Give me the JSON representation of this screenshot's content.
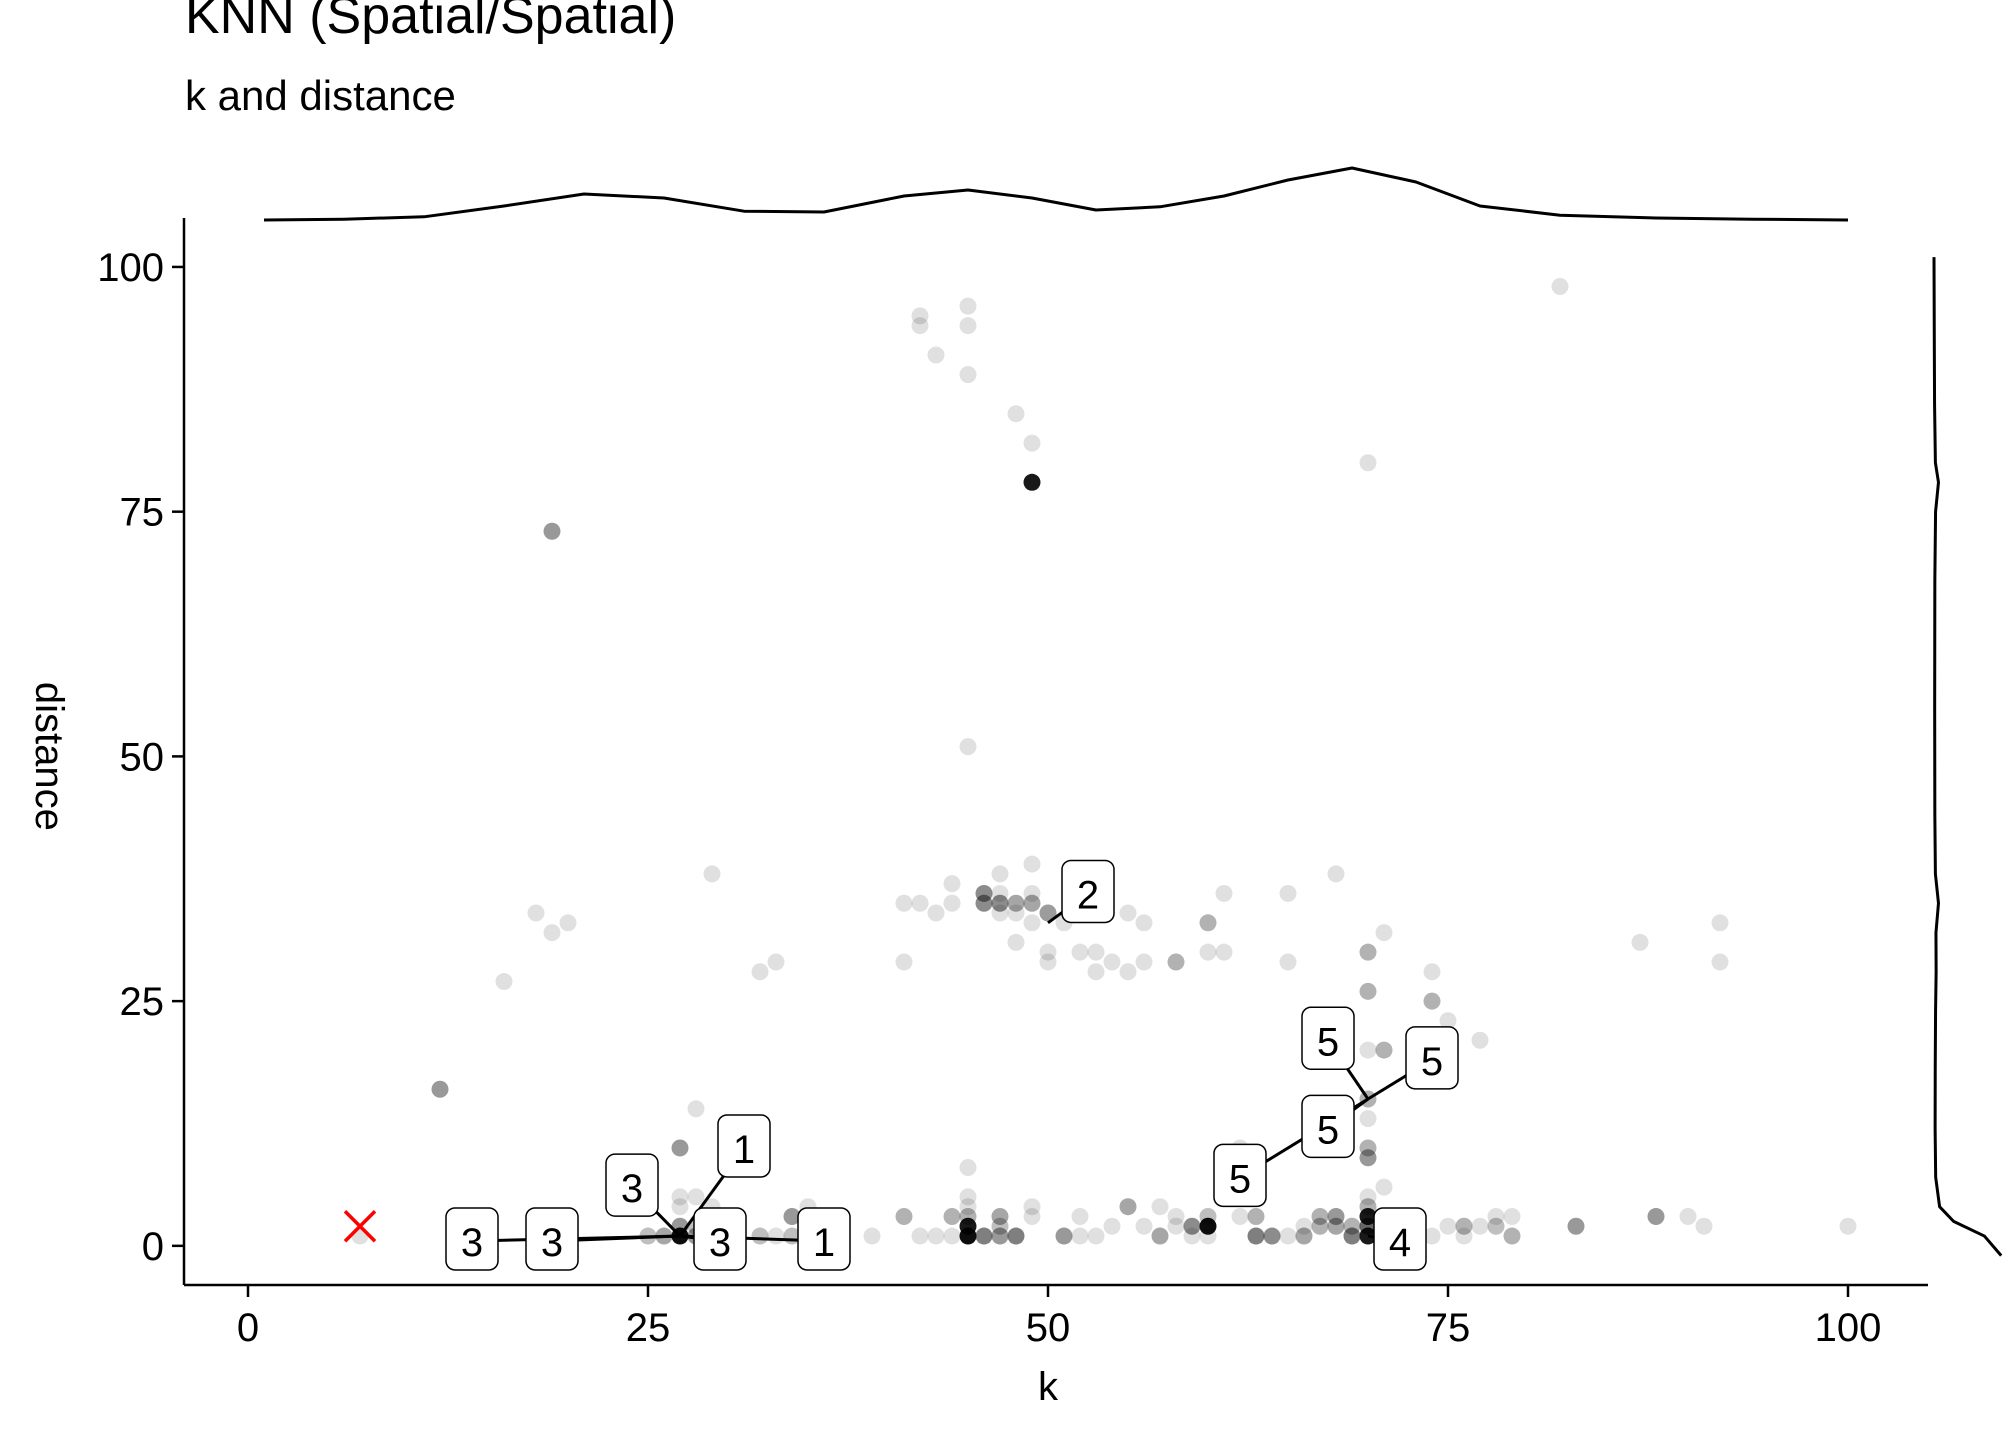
{
  "chart_data": {
    "type": "scatter",
    "title": "KNN (Spatial/Spatial)",
    "subtitle": "k and distance",
    "xlabel": "k",
    "ylabel": "distance",
    "xlim": [
      -4,
      105
    ],
    "ylim": [
      -4,
      105
    ],
    "x_ticks": [
      0,
      25,
      50,
      75,
      100
    ],
    "y_ticks": [
      0,
      25,
      50,
      75,
      100
    ],
    "grid": false,
    "marginal_density": {
      "top": "k",
      "right": "distance"
    },
    "point_color": "#000000",
    "marker_color": "#ff0000",
    "points": [
      [
        42,
        95,
        0.12
      ],
      [
        42,
        94,
        0.12
      ],
      [
        45,
        96,
        0.12
      ],
      [
        45,
        94,
        0.12
      ],
      [
        43,
        91,
        0.12
      ],
      [
        45,
        89,
        0.12
      ],
      [
        48,
        85,
        0.12
      ],
      [
        49,
        82,
        0.12
      ],
      [
        82,
        98,
        0.12
      ],
      [
        70,
        80,
        0.12
      ],
      [
        45,
        51,
        0.12
      ],
      [
        49,
        39,
        0.12
      ],
      [
        44,
        37,
        0.12
      ],
      [
        47,
        38,
        0.12
      ],
      [
        52,
        36,
        0.12
      ],
      [
        53,
        37,
        0.12
      ],
      [
        61,
        36,
        0.12
      ],
      [
        65,
        36,
        0.12
      ],
      [
        68,
        38,
        0.12
      ],
      [
        41,
        35,
        0.12
      ],
      [
        42,
        35,
        0.12
      ],
      [
        43,
        34,
        0.12
      ],
      [
        44,
        35,
        0.12
      ],
      [
        47,
        34,
        0.12
      ],
      [
        48,
        34,
        0.12
      ],
      [
        49,
        33,
        0.12
      ],
      [
        50,
        34,
        0.12
      ],
      [
        51,
        33,
        0.12
      ],
      [
        52,
        35,
        0.12
      ],
      [
        55,
        34,
        0.12
      ],
      [
        56,
        33,
        0.12
      ],
      [
        47,
        36,
        0.12
      ],
      [
        49,
        36,
        0.12
      ],
      [
        46,
        35,
        0.45
      ],
      [
        47,
        35,
        0.45
      ],
      [
        46,
        36,
        0.45
      ],
      [
        48,
        35,
        0.35
      ],
      [
        49,
        35,
        0.35
      ],
      [
        50,
        34,
        0.3
      ],
      [
        60,
        33,
        0.3
      ],
      [
        70,
        30,
        0.3
      ],
      [
        71,
        32,
        0.12
      ],
      [
        41,
        29,
        0.12
      ],
      [
        48,
        31,
        0.12
      ],
      [
        50,
        30,
        0.12
      ],
      [
        50,
        29,
        0.12
      ],
      [
        52,
        30,
        0.12
      ],
      [
        53,
        30,
        0.12
      ],
      [
        53,
        28,
        0.12
      ],
      [
        54,
        29,
        0.12
      ],
      [
        55,
        28,
        0.12
      ],
      [
        56,
        29,
        0.12
      ],
      [
        58,
        29,
        0.3
      ],
      [
        60,
        30,
        0.12
      ],
      [
        61,
        30,
        0.12
      ],
      [
        65,
        29,
        0.12
      ],
      [
        87,
        31,
        0.12
      ],
      [
        92,
        33,
        0.12
      ],
      [
        92,
        29,
        0.12
      ],
      [
        29,
        38,
        0.12
      ],
      [
        18,
        34,
        0.12
      ],
      [
        19,
        32,
        0.12
      ],
      [
        20,
        33,
        0.12
      ],
      [
        16,
        27,
        0.12
      ],
      [
        32,
        28,
        0.12
      ],
      [
        33,
        29,
        0.12
      ],
      [
        19,
        73,
        0.4
      ],
      [
        49,
        78,
        0.9
      ],
      [
        12,
        16,
        0.4
      ],
      [
        74,
        28,
        0.12
      ],
      [
        74,
        25,
        0.3
      ],
      [
        75,
        23,
        0.12
      ],
      [
        77,
        21,
        0.12
      ],
      [
        70,
        26,
        0.3
      ],
      [
        70,
        20,
        0.12
      ],
      [
        71,
        20,
        0.3
      ],
      [
        70,
        15,
        0.3
      ],
      [
        70,
        13,
        0.12
      ],
      [
        70,
        10,
        0.3
      ],
      [
        70,
        9,
        0.4
      ],
      [
        71,
        6,
        0.12
      ],
      [
        70,
        5,
        0.12
      ],
      [
        62,
        10,
        0.12
      ],
      [
        28,
        14,
        0.12
      ],
      [
        27,
        10,
        0.4
      ],
      [
        27,
        5,
        0.12
      ],
      [
        27,
        4,
        0.12
      ],
      [
        28,
        5,
        0.12
      ],
      [
        29,
        4,
        0.12
      ],
      [
        45,
        8,
        0.12
      ],
      [
        45,
        5,
        0.12
      ],
      [
        45,
        4,
        0.12
      ],
      [
        25,
        1,
        0.25
      ],
      [
        26,
        1,
        0.35
      ],
      [
        27,
        1,
        0.95
      ],
      [
        27,
        2,
        0.4
      ],
      [
        28,
        1,
        0.4
      ],
      [
        28,
        2,
        0.25
      ],
      [
        29,
        1,
        0.3
      ],
      [
        30,
        2,
        0.25
      ],
      [
        30,
        1,
        0.25
      ],
      [
        32,
        1,
        0.25
      ],
      [
        33,
        1,
        0.12
      ],
      [
        34,
        3,
        0.4
      ],
      [
        34,
        1,
        0.25
      ],
      [
        35,
        4,
        0.12
      ],
      [
        35,
        1,
        0.12
      ],
      [
        37,
        1,
        0.12
      ],
      [
        39,
        1,
        0.12
      ],
      [
        41,
        3,
        0.3
      ],
      [
        42,
        1,
        0.12
      ],
      [
        43,
        1,
        0.12
      ],
      [
        44,
        1,
        0.12
      ],
      [
        44,
        3,
        0.3
      ],
      [
        45,
        1,
        0.95
      ],
      [
        45,
        2,
        0.9
      ],
      [
        45,
        3,
        0.3
      ],
      [
        46,
        1,
        0.5
      ],
      [
        47,
        1,
        0.4
      ],
      [
        47,
        2,
        0.25
      ],
      [
        47,
        3,
        0.35
      ],
      [
        48,
        1,
        0.5
      ],
      [
        49,
        3,
        0.12
      ],
      [
        49,
        4,
        0.12
      ],
      [
        51,
        1,
        0.4
      ],
      [
        52,
        3,
        0.12
      ],
      [
        52,
        1,
        0.12
      ],
      [
        53,
        1,
        0.12
      ],
      [
        54,
        2,
        0.12
      ],
      [
        55,
        4,
        0.35
      ],
      [
        56,
        2,
        0.12
      ],
      [
        57,
        4,
        0.12
      ],
      [
        57,
        1,
        0.35
      ],
      [
        58,
        3,
        0.12
      ],
      [
        58,
        2,
        0.12
      ],
      [
        59,
        1,
        0.12
      ],
      [
        59,
        2,
        0.45
      ],
      [
        60,
        2,
        0.95
      ],
      [
        60,
        3,
        0.25
      ],
      [
        60,
        1,
        0.12
      ],
      [
        62,
        3,
        0.12
      ],
      [
        63,
        3,
        0.3
      ],
      [
        63,
        1,
        0.5
      ],
      [
        64,
        1,
        0.45
      ],
      [
        65,
        1,
        0.12
      ],
      [
        66,
        1,
        0.35
      ],
      [
        66,
        2,
        0.12
      ],
      [
        67,
        2,
        0.3
      ],
      [
        67,
        3,
        0.3
      ],
      [
        68,
        2,
        0.35
      ],
      [
        68,
        3,
        0.4
      ],
      [
        69,
        2,
        0.3
      ],
      [
        69,
        1,
        0.5
      ],
      [
        70,
        1,
        0.9
      ],
      [
        70,
        2,
        0.6
      ],
      [
        70,
        3,
        0.9
      ],
      [
        70,
        4,
        0.3
      ],
      [
        71,
        2,
        0.3
      ],
      [
        72,
        1,
        0.25
      ],
      [
        73,
        2,
        0.12
      ],
      [
        74,
        1,
        0.12
      ],
      [
        75,
        2,
        0.12
      ],
      [
        76,
        2,
        0.3
      ],
      [
        76,
        1,
        0.12
      ],
      [
        77,
        2,
        0.12
      ],
      [
        78,
        3,
        0.12
      ],
      [
        78,
        2,
        0.25
      ],
      [
        79,
        1,
        0.3
      ],
      [
        79,
        3,
        0.12
      ],
      [
        83,
        2,
        0.4
      ],
      [
        88,
        3,
        0.4
      ],
      [
        90,
        3,
        0.12
      ],
      [
        91,
        2,
        0.12
      ],
      [
        100,
        2,
        0.12
      ],
      [
        7,
        1,
        0.12
      ]
    ],
    "cross_marker": {
      "x": 7,
      "y": 2
    },
    "labels": [
      {
        "text": "3",
        "x": 14,
        "y": 0.5,
        "tx": 27,
        "ty": 1
      },
      {
        "text": "3",
        "x": 19,
        "y": 0.5,
        "tx": 27,
        "ty": 1
      },
      {
        "text": "3",
        "x": 24,
        "y": 6,
        "tx": 27,
        "ty": 1
      },
      {
        "text": "3",
        "x": 29.5,
        "y": 0.5,
        "tx": 27,
        "ty": 1
      },
      {
        "text": "1",
        "x": 31,
        "y": 10,
        "tx": 27,
        "ty": 1
      },
      {
        "text": "1",
        "x": 36,
        "y": 0.5,
        "tx": 27,
        "ty": 1
      },
      {
        "text": "2",
        "x": 52.5,
        "y": 36,
        "tx": 50,
        "ty": 33
      },
      {
        "text": "5",
        "x": 67.5,
        "y": 21,
        "tx": 70,
        "ty": 15
      },
      {
        "text": "5",
        "x": 74,
        "y": 19,
        "tx": 70,
        "ty": 15
      },
      {
        "text": "5",
        "x": 67.5,
        "y": 12,
        "tx": 70,
        "ty": 15
      },
      {
        "text": "5",
        "x": 62,
        "y": 7,
        "tx": 70,
        "ty": 15
      },
      {
        "text": "4",
        "x": 72,
        "y": 0.5,
        "tx": 70,
        "ty": 1
      }
    ],
    "density_top": [
      [
        1,
        0.0
      ],
      [
        6,
        0.02
      ],
      [
        11,
        0.08
      ],
      [
        16,
        0.35
      ],
      [
        21,
        0.65
      ],
      [
        26,
        0.55
      ],
      [
        31,
        0.22
      ],
      [
        36,
        0.2
      ],
      [
        41,
        0.6
      ],
      [
        45,
        0.75
      ],
      [
        49,
        0.55
      ],
      [
        53,
        0.25
      ],
      [
        57,
        0.33
      ],
      [
        61,
        0.6
      ],
      [
        65,
        1.0
      ],
      [
        69,
        1.3
      ],
      [
        73,
        0.95
      ],
      [
        77,
        0.35
      ],
      [
        82,
        0.12
      ],
      [
        88,
        0.05
      ],
      [
        94,
        0.02
      ],
      [
        100,
        0.0
      ]
    ],
    "density_right": [
      [
        101,
        0.0
      ],
      [
        98,
        0.02
      ],
      [
        93,
        0.05
      ],
      [
        86,
        0.1
      ],
      [
        80,
        0.25
      ],
      [
        78,
        0.8
      ],
      [
        75,
        0.28
      ],
      [
        68,
        0.15
      ],
      [
        55,
        0.12
      ],
      [
        44,
        0.15
      ],
      [
        38,
        0.25
      ],
      [
        35,
        0.8
      ],
      [
        32,
        0.35
      ],
      [
        28,
        0.38
      ],
      [
        24,
        0.28
      ],
      [
        18,
        0.22
      ],
      [
        12,
        0.2
      ],
      [
        7,
        0.3
      ],
      [
        4,
        1.0
      ],
      [
        2.5,
        3.5
      ],
      [
        1,
        9
      ],
      [
        -1,
        12
      ]
    ]
  }
}
